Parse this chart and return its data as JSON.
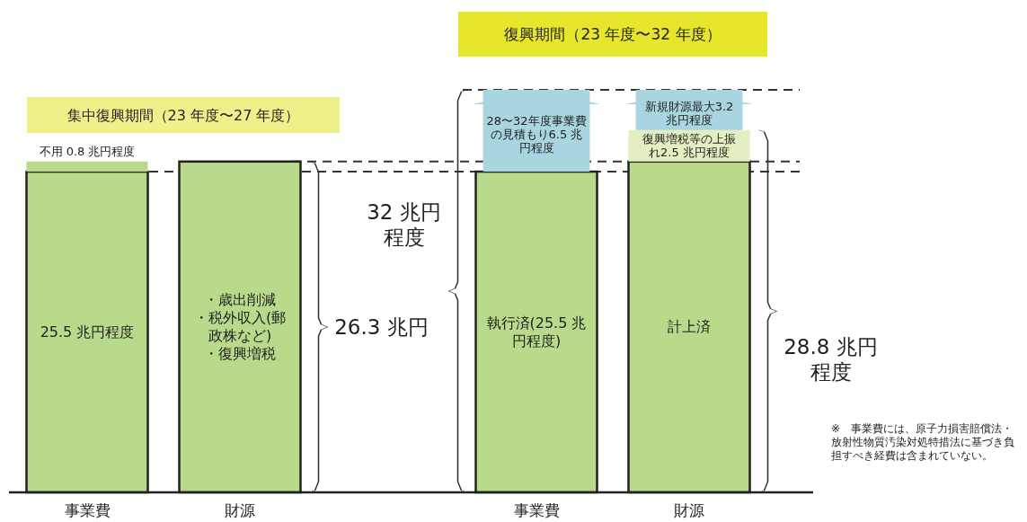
{
  "chart_data": {
    "type": "bar",
    "stacked": true,
    "categories": [
      "事業費",
      "財源",
      "事業費",
      "財源"
    ],
    "series": [
      {
        "colors": [
          "#b9d98b",
          "#b9d98b",
          "#b9d98b",
          "#b9d98b"
        ],
        "values": [
          25.5,
          26.3,
          25.5,
          26.3
        ],
        "value_labels": [
          "25.5 兆円程度",
          "・歳出削減・税外収入(郵政株など)・復興増税",
          "執行済(25.5 兆円程度)",
          "計上済"
        ]
      },
      {
        "colors": [
          "#b9d98b",
          null,
          "#a8d5e0",
          "#e3efc0"
        ],
        "values": [
          0.8,
          null,
          6.5,
          2.5
        ],
        "value_labels": [
          "不用 0.8 兆円程度",
          null,
          "28〜32年度事業費の見積もり6.5 兆円程度",
          "復興増税等の上振れ2.5 兆円程度"
        ]
      },
      {
        "colors": [
          null,
          null,
          null,
          "#a8d5e0"
        ],
        "values": [
          null,
          null,
          null,
          3.2
        ],
        "value_labels": [
          null,
          null,
          null,
          "新規財源最大3.2 兆円程度"
        ]
      }
    ],
    "ref_lines": [
      {
        "axis": "y",
        "value": 25.5,
        "line_style": "dashed"
      },
      {
        "axis": "y",
        "value": 26.3,
        "line_style": "dashed"
      },
      {
        "axis": "y",
        "value": 32,
        "line_style": "dashed"
      }
    ],
    "annotations": [
      "集中復興期間（23 年度〜27 年度）",
      "復興期間（23 年度〜32 年度）",
      "32 兆円程度",
      "26.3 兆円",
      "28.8 兆円程度",
      "※　事業費には、原子力損害賠償法・放射性物質汚染対処特措法に基づき負担すべき経費は含まれていない。"
    ]
  }
}
